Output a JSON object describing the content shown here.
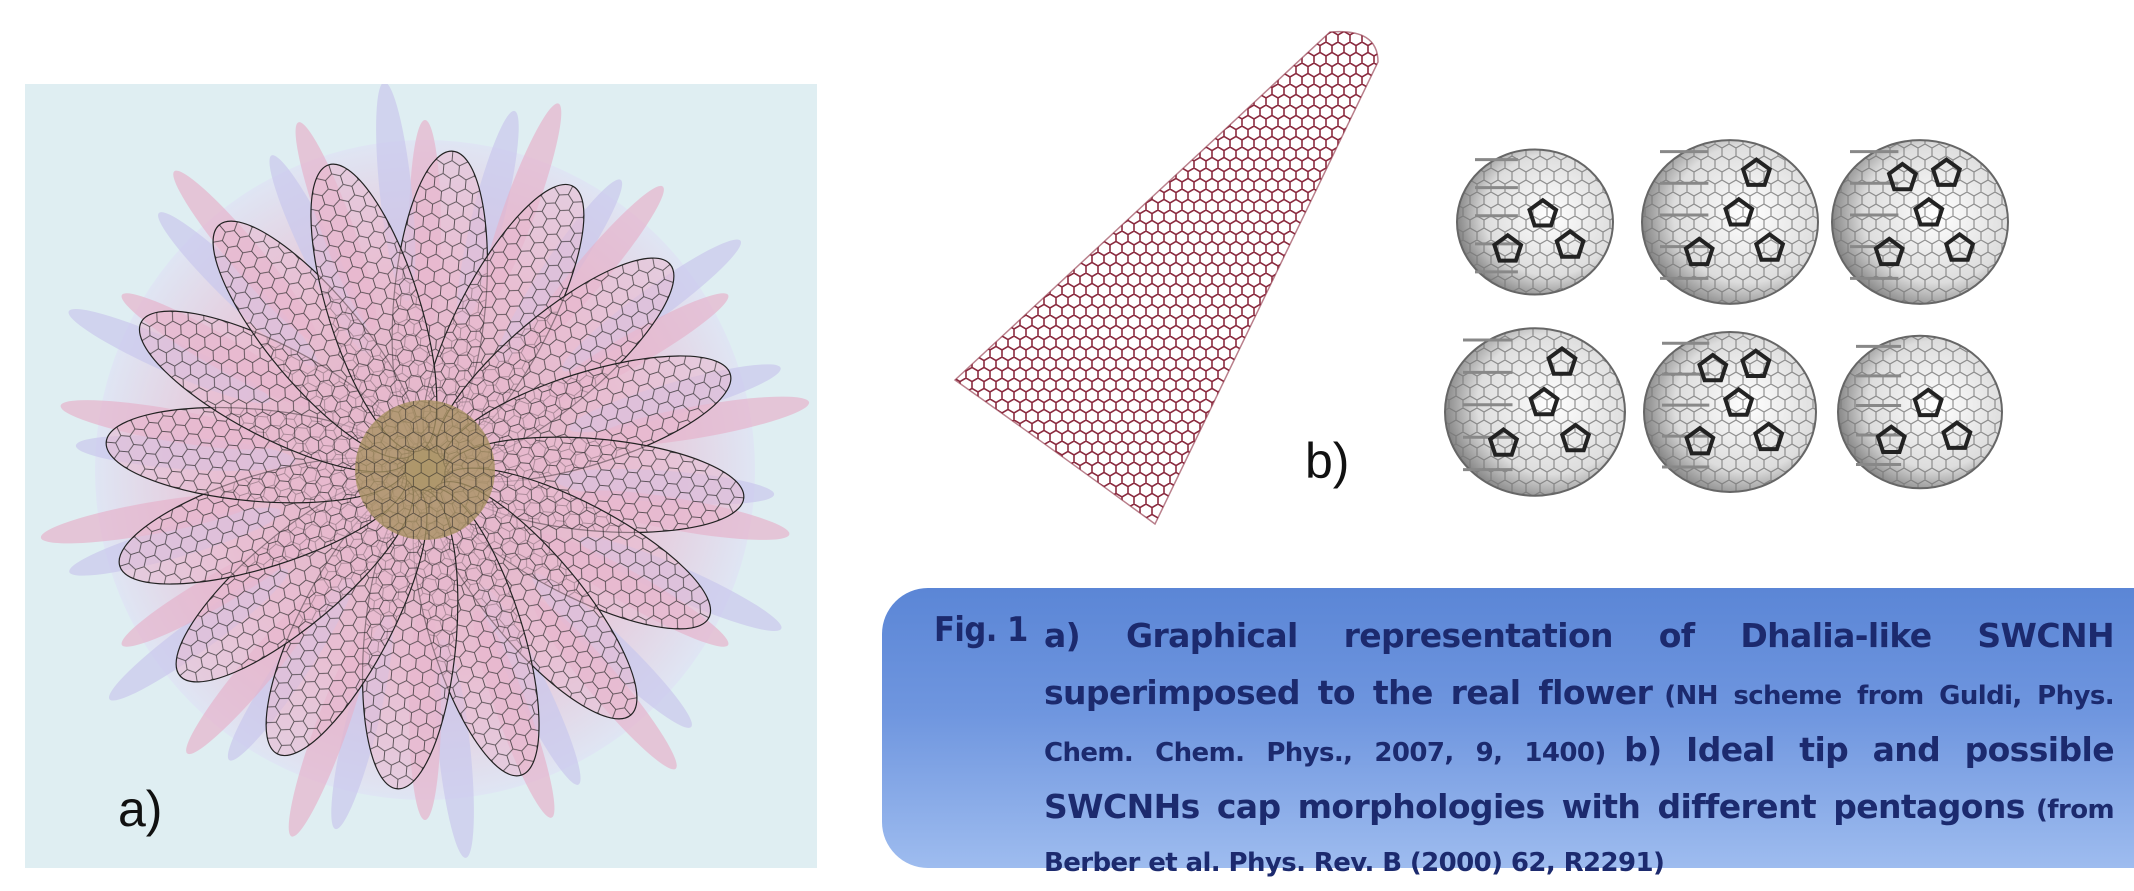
{
  "panel_a": {
    "label": "a)"
  },
  "panel_b": {
    "label": "b)"
  },
  "caption": {
    "label": "Fig. 1",
    "parts": [
      "a) Graphical representation of Dhalia-like SWCNH superimposed to the real flower",
      "(NH scheme from Guldi, Phys. Chem. Chem. Phys., 2007, 9, 1400)",
      "b) Ideal tip and possible SWCNHs cap morphologies with different pentagons",
      "(from Berber et al. Phys. Rev. B (2000) 62, R2291)"
    ]
  }
}
